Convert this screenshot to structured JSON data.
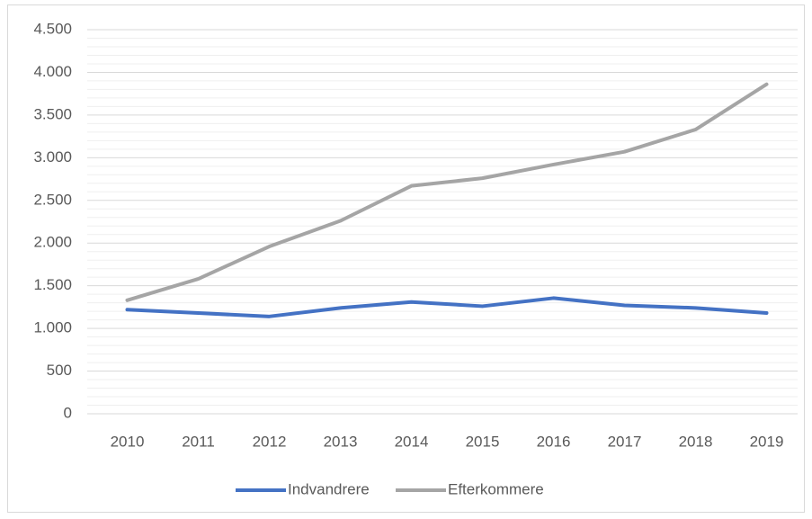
{
  "chart_data": {
    "type": "line",
    "categories": [
      "2010",
      "2011",
      "2012",
      "2013",
      "2014",
      "2015",
      "2016",
      "2017",
      "2018",
      "2019"
    ],
    "series": [
      {
        "name": "Indvandrere",
        "color": "#4472c4",
        "values": [
          1220,
          1180,
          1140,
          1240,
          1310,
          1260,
          1355,
          1270,
          1240,
          1180
        ]
      },
      {
        "name": "Efterkommere",
        "color": "#a5a5a5",
        "values": [
          1330,
          1580,
          1960,
          2260,
          2670,
          2760,
          2920,
          3070,
          3330,
          3860
        ]
      }
    ],
    "ylim": [
      0,
      4500
    ],
    "yticks": [
      0,
      500,
      {
        "value": 1000,
        "label": "1.000"
      },
      {
        "value": 1500,
        "label": "1.500"
      },
      {
        "value": 2000,
        "label": "2.000"
      },
      {
        "value": 2500,
        "label": "2.500"
      },
      {
        "value": 3000,
        "label": "3.000"
      },
      {
        "value": 3500,
        "label": "3.500"
      },
      {
        "value": 4000,
        "label": "4.000"
      },
      {
        "value": 4500,
        "label": "4.500"
      }
    ],
    "grid": true,
    "minor_grid": true,
    "legend": "bottom"
  }
}
